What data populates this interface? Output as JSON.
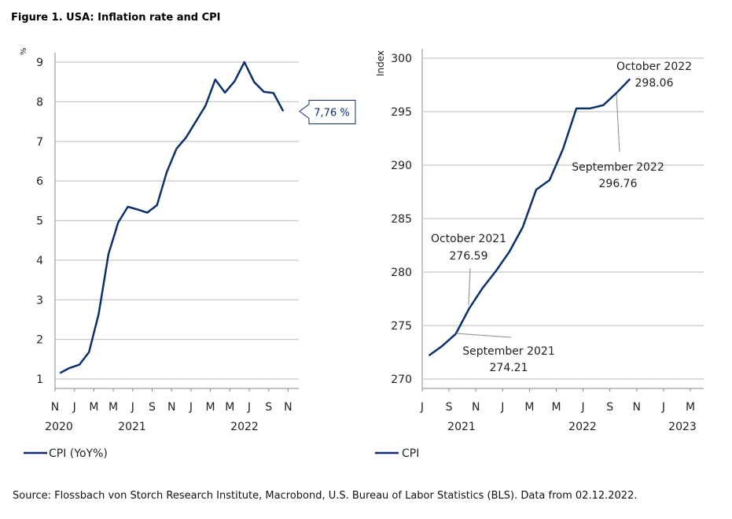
{
  "title": "Figure 1. USA: Inflation rate and CPI",
  "source": "Source: Flossbach von Storch Research Institute, Macrobond, U.S. Bureau of Labor Statistics (BLS). Data from 02.12.2022.",
  "colors": {
    "line": "#0b2f6b",
    "grid": "#c8c8c8",
    "axis": "#b0b0b0"
  },
  "chart_data": [
    {
      "type": "line",
      "ylabel": "%",
      "ylim": [
        1,
        9
      ],
      "yticks": [
        1,
        2,
        3,
        4,
        5,
        6,
        7,
        8,
        9
      ],
      "xlim": [
        "2020-11",
        "2022-12"
      ],
      "xtick_labels": [
        "N",
        "J",
        "M",
        "M",
        "J",
        "S",
        "N",
        "J",
        "M",
        "M",
        "J",
        "S",
        "N"
      ],
      "year_labels": [
        "2020",
        "2021",
        "2022"
      ],
      "grid": true,
      "legend_position": "bottom-left",
      "callout": "7,76 %",
      "series": [
        {
          "name": "CPI (YoY%)",
          "x": [
            "2020-11",
            "2020-12",
            "2021-01",
            "2021-02",
            "2021-03",
            "2021-04",
            "2021-05",
            "2021-06",
            "2021-07",
            "2021-08",
            "2021-09",
            "2021-10",
            "2021-11",
            "2021-12",
            "2022-01",
            "2022-02",
            "2022-03",
            "2022-04",
            "2022-05",
            "2022-06",
            "2022-07",
            "2022-08",
            "2022-09",
            "2022-10"
          ],
          "y": [
            1.15,
            1.28,
            1.36,
            1.68,
            2.65,
            4.15,
            4.95,
            5.35,
            5.28,
            5.2,
            5.39,
            6.22,
            6.81,
            7.1,
            7.5,
            7.9,
            8.56,
            8.23,
            8.52,
            9.0,
            8.5,
            8.25,
            8.22,
            7.76
          ]
        }
      ]
    },
    {
      "type": "line",
      "ylabel": "Index",
      "ylim": [
        270,
        300
      ],
      "yticks": [
        270,
        275,
        280,
        285,
        290,
        295,
        300
      ],
      "xlim": [
        "2021-07",
        "2023-04"
      ],
      "xtick_labels": [
        "J",
        "S",
        "N",
        "J",
        "M",
        "M",
        "J",
        "S",
        "N",
        "J",
        "M"
      ],
      "year_labels": [
        "2021",
        "2022",
        "2023"
      ],
      "grid": true,
      "legend_position": "bottom-left",
      "annotations": [
        {
          "label": "October 2022",
          "value": "298.06"
        },
        {
          "label": "September 2022",
          "value": "296.76"
        },
        {
          "label": "October 2021",
          "value": "276.59"
        },
        {
          "label": "September 2021",
          "value": "274.21"
        }
      ],
      "series": [
        {
          "name": "CPI",
          "x": [
            "2021-07",
            "2021-08",
            "2021-09",
            "2021-10",
            "2021-11",
            "2021-12",
            "2022-01",
            "2022-02",
            "2022-03",
            "2022-04",
            "2022-05",
            "2022-06",
            "2022-07",
            "2022-08",
            "2022-09",
            "2022-10"
          ],
          "y": [
            272.2,
            273.1,
            274.21,
            276.59,
            278.5,
            280.1,
            281.9,
            284.2,
            287.7,
            288.6,
            291.5,
            295.3,
            295.3,
            295.6,
            296.76,
            298.06
          ]
        }
      ]
    }
  ]
}
